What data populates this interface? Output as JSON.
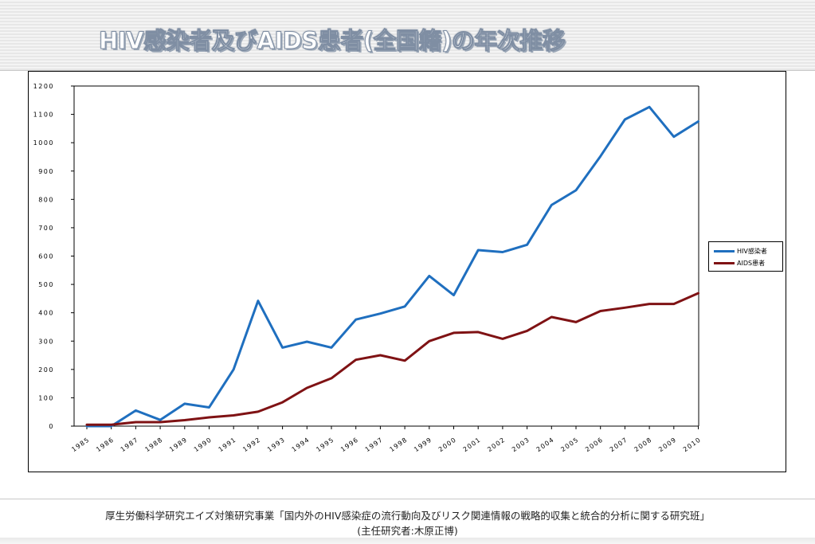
{
  "header": {
    "title": "HIV感染者及びAIDS患者(全国籍)の年次推移"
  },
  "footer": {
    "line1": "厚生労働科学研究エイズ対策研究事業「国内外のHIV感染症の流行動向及びリスク関連情報の戦略的収集と統合的分析に関する研究班」",
    "line2": "(主任研究者:木原正博)"
  },
  "chart_data": {
    "type": "line",
    "title": "HIV感染者及びAIDS患者(全国籍)の年次推移",
    "xlabel": "",
    "ylabel": "",
    "categories": [
      "1985",
      "1986",
      "1987",
      "1988",
      "1989",
      "1990",
      "1991",
      "1992",
      "1993",
      "1994",
      "1995",
      "1996",
      "1997",
      "1998",
      "1999",
      "2000",
      "2001",
      "2002",
      "2003",
      "2004",
      "2005",
      "2006",
      "2007",
      "2008",
      "2009",
      "2010"
    ],
    "ylim": [
      0,
      1200
    ],
    "yticks": [
      "0",
      "100",
      "200",
      "300",
      "400",
      "500",
      "600",
      "700",
      "800",
      "900",
      "1000",
      "1100",
      "1200"
    ],
    "grid": false,
    "legend_position": "right",
    "series": [
      {
        "name": "HIV感染者",
        "color": "#1f6fbf",
        "values": [
          0,
          0,
          55,
          22,
          79,
          66,
          200,
          442,
          277,
          298,
          277,
          376,
          397,
          422,
          530,
          462,
          621,
          614,
          640,
          780,
          832,
          952,
          1082,
          1126,
          1021,
          1075
        ]
      },
      {
        "name": "AIDS患者",
        "color": "#7f1214",
        "values": [
          5,
          5,
          14,
          14,
          21,
          31,
          38,
          51,
          84,
          135,
          169,
          234,
          250,
          231,
          300,
          329,
          332,
          308,
          336,
          385,
          367,
          406,
          418,
          431,
          431,
          469
        ]
      }
    ]
  }
}
